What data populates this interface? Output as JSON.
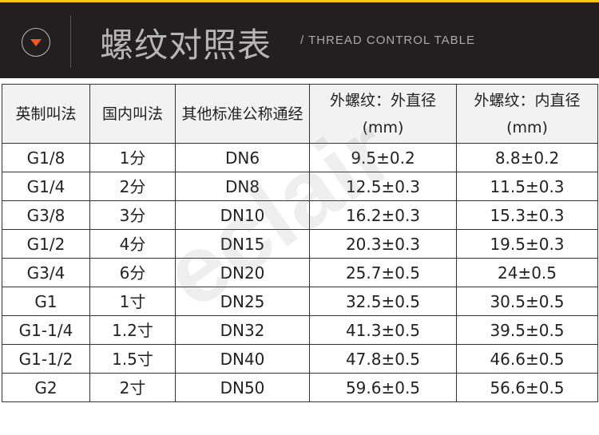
{
  "header": {
    "title": "螺纹对照表",
    "subtitle": "/ THREAD CONTROL TABLE",
    "accent": "#f05a22",
    "stripe": "#f5c518",
    "icon": "chevron-down-circle-icon"
  },
  "table": {
    "columns": [
      "英制叫法",
      "国内叫法",
      "其他标准公称通经",
      "外螺纹：外直径(mm)",
      "外螺纹：内直径(mm)"
    ],
    "rows": [
      [
        "G1/8",
        "1分",
        "DN6",
        "9.5±0.2",
        "8.8±0.2"
      ],
      [
        "G1/4",
        "2分",
        "DN8",
        "12.5±0.3",
        "11.5±0.3"
      ],
      [
        "G3/8",
        "3分",
        "DN10",
        "16.2±0.3",
        "15.3±0.3"
      ],
      [
        "G1/2",
        "4分",
        "DN15",
        "20.3±0.3",
        "19.5±0.3"
      ],
      [
        "G3/4",
        "6分",
        "DN20",
        "25.7±0.5",
        "24±0.5"
      ],
      [
        "G1",
        "1寸",
        "DN25",
        "32.5±0.5",
        "30.5±0.5"
      ],
      [
        "G1-1/4",
        "1.2寸",
        "DN32",
        "41.3±0.5",
        "39.5±0.5"
      ],
      [
        "G1-1/2",
        "1.5寸",
        "DN40",
        "47.8±0.5",
        "46.6±0.5"
      ],
      [
        "G2",
        "2寸",
        "DN50",
        "59.6±0.5",
        "56.6±0.5"
      ]
    ]
  },
  "watermark": "eclair"
}
